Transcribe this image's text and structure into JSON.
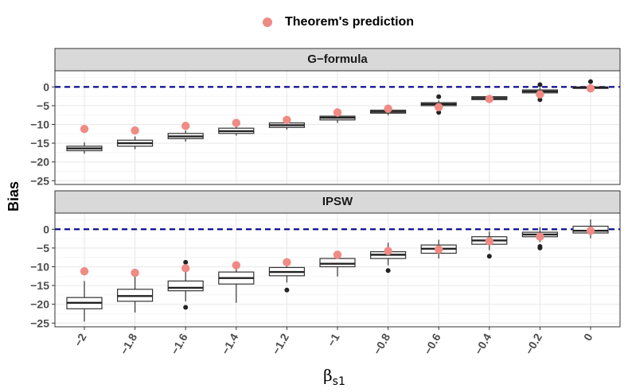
{
  "chart_data": {
    "type": "boxplot",
    "legend": {
      "label": "Theorem's prediction",
      "color": "#F08A84",
      "position": "top"
    },
    "ylabel": "Bias",
    "xlabel": {
      "symbol": "β",
      "subscript": "s1"
    },
    "categories": [
      "−2",
      "−1.8",
      "−1.6",
      "−1.4",
      "−1.2",
      "−1",
      "−0.8",
      "−0.6",
      "−0.4",
      "−0.2",
      "0"
    ],
    "x_values": [
      -2,
      -1.8,
      -1.6,
      -1.4,
      -1.2,
      -1,
      -0.8,
      -0.6,
      -0.4,
      -0.2,
      0
    ],
    "reference_line": {
      "y": 0,
      "style": "dashed",
      "color": "#00008B"
    },
    "prediction": [
      -11.2,
      -11.6,
      -10.4,
      -9.6,
      -8.8,
      -6.8,
      -5.8,
      -5.4,
      -3.2,
      -2,
      -0.4
    ],
    "panels": [
      {
        "title": "G−formula",
        "ylim": [
          -26,
          4.3
        ],
        "yticks": [
          0,
          -5,
          -10,
          -15,
          -20,
          -25
        ],
        "ytick_labels": [
          "0",
          "−5",
          "−10",
          "−15",
          "−20",
          "−25"
        ],
        "boxes": [
          {
            "x": -2,
            "min": -17.8,
            "q1": -17.0,
            "median": -16.4,
            "q3": -15.8,
            "max": -14.8,
            "outliers": []
          },
          {
            "x": -1.8,
            "min": -16.6,
            "q1": -15.8,
            "median": -15.0,
            "q3": -14.2,
            "max": -13.2,
            "outliers": []
          },
          {
            "x": -1.6,
            "min": -14.6,
            "q1": -13.8,
            "median": -13.2,
            "q3": -12.4,
            "max": -11.6,
            "outliers": []
          },
          {
            "x": -1.4,
            "min": -13.0,
            "q1": -12.4,
            "median": -11.8,
            "q3": -11.0,
            "max": -10.2,
            "outliers": []
          },
          {
            "x": -1.2,
            "min": -11.4,
            "q1": -10.8,
            "median": -10.2,
            "q3": -9.6,
            "max": -8.8,
            "outliers": []
          },
          {
            "x": -1,
            "min": -9.6,
            "q1": -8.8,
            "median": -8.2,
            "q3": -7.8,
            "max": -7.0,
            "outliers": []
          },
          {
            "x": -0.8,
            "min": -7.6,
            "q1": -7.0,
            "median": -6.6,
            "q3": -6.2,
            "max": -5.6,
            "outliers": []
          },
          {
            "x": -0.6,
            "min": -5.6,
            "q1": -5.0,
            "median": -4.6,
            "q3": -4.2,
            "max": -3.6,
            "outliers": [
              -6.8,
              -2.6
            ]
          },
          {
            "x": -0.4,
            "min": -3.8,
            "q1": -3.4,
            "median": -3.0,
            "q3": -2.6,
            "max": -2.2,
            "outliers": []
          },
          {
            "x": -0.2,
            "min": -2.6,
            "q1": -1.6,
            "median": -1.2,
            "q3": -0.8,
            "max": -0.2,
            "outliers": [
              -3.4,
              0.6
            ]
          },
          {
            "x": 0,
            "min": -0.8,
            "q1": -0.4,
            "median": -0.2,
            "q3": 0.0,
            "max": 0.6,
            "outliers": [
              1.4
            ]
          }
        ]
      },
      {
        "title": "IPSW",
        "ylim": [
          -26,
          4.3
        ],
        "yticks": [
          0,
          -5,
          -10,
          -15,
          -20,
          -25
        ],
        "ytick_labels": [
          "0",
          "−5",
          "−10",
          "−15",
          "−20",
          "−25"
        ],
        "boxes": [
          {
            "x": -2,
            "min": -24.6,
            "q1": -21.2,
            "median": -19.6,
            "q3": -18.2,
            "max": -13.8,
            "outliers": []
          },
          {
            "x": -1.8,
            "min": -22.2,
            "q1": -19.2,
            "median": -17.8,
            "q3": -16.0,
            "max": -12.6,
            "outliers": []
          },
          {
            "x": -1.6,
            "min": -19.2,
            "q1": -16.4,
            "median": -15.6,
            "q3": -13.8,
            "max": -11.2,
            "outliers": [
              -20.8,
              -8.8
            ]
          },
          {
            "x": -1.4,
            "min": -19.6,
            "q1": -14.6,
            "median": -13.0,
            "q3": -11.4,
            "max": -8.8,
            "outliers": []
          },
          {
            "x": -1.2,
            "min": -14.2,
            "q1": -12.4,
            "median": -11.4,
            "q3": -10.2,
            "max": -8.2,
            "outliers": [
              -16.2
            ]
          },
          {
            "x": -1,
            "min": -12.6,
            "q1": -10.0,
            "median": -9.2,
            "q3": -7.8,
            "max": -6.2,
            "outliers": []
          },
          {
            "x": -0.8,
            "min": -9.6,
            "q1": -7.8,
            "median": -6.8,
            "q3": -6.0,
            "max": -3.6,
            "outliers": [
              -11.0
            ]
          },
          {
            "x": -0.6,
            "min": -7.8,
            "q1": -6.4,
            "median": -5.2,
            "q3": -4.2,
            "max": -2.8,
            "outliers": []
          },
          {
            "x": -0.4,
            "min": -5.6,
            "q1": -4.0,
            "median": -3.0,
            "q3": -2.0,
            "max": -0.6,
            "outliers": [
              -7.2
            ]
          },
          {
            "x": -0.2,
            "min": -3.4,
            "q1": -2.0,
            "median": -1.4,
            "q3": -0.8,
            "max": 0.6,
            "outliers": [
              -4.6,
              -5.0
            ]
          },
          {
            "x": 0,
            "min": -2.4,
            "q1": -1.0,
            "median": -0.4,
            "q3": 0.8,
            "max": 2.6,
            "outliers": []
          }
        ]
      }
    ]
  }
}
